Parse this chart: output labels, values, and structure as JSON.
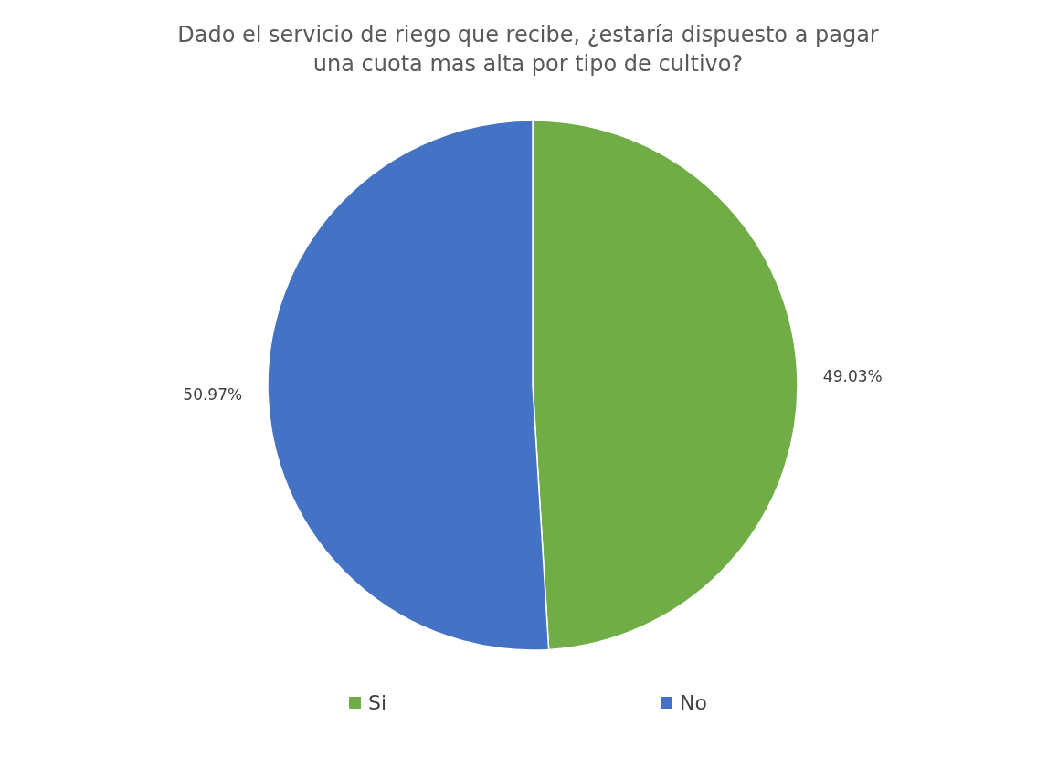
{
  "chart_data": {
    "type": "pie",
    "title": "Dado el servicio de riego que recibe, ¿estaría dispuesto a pagar una cuota mas alta por tipo de cultivo?",
    "categories": [
      "Si",
      "No"
    ],
    "values": [
      49.03,
      50.97
    ],
    "colors": [
      "#70ad47",
      "#4472c4"
    ],
    "value_labels": [
      "49.03%",
      "50.97%"
    ],
    "legend": "bottom"
  }
}
